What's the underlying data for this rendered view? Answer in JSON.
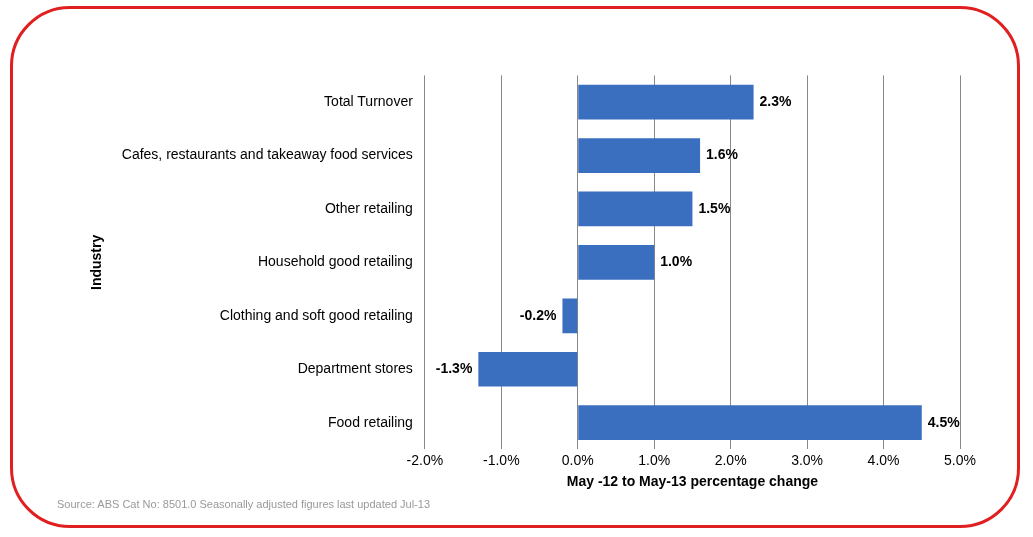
{
  "chart_data": {
    "type": "bar",
    "orientation": "horizontal",
    "xlabel": "May -12 to May-13 percentage change",
    "ylabel": "Industry",
    "categories": [
      "Total Turnover",
      "Cafes, restaurants and takeaway food services",
      "Other retailing",
      "Household good retailing",
      "Clothing and soft good retailing",
      "Department stores",
      "Food retailing"
    ],
    "values": [
      2.3,
      1.6,
      1.5,
      1.0,
      -0.2,
      -1.3,
      4.5
    ],
    "value_labels": [
      "2.3%",
      "1.6%",
      "1.5%",
      "1.0%",
      "-0.2%",
      "-1.3%",
      "4.5%"
    ],
    "color": "#3a6ebf",
    "xlim": [
      -2,
      5
    ],
    "xticks": [
      {
        "value": -2,
        "label": "-2.0%"
      },
      {
        "value": -1,
        "label": "-1.0%"
      },
      {
        "value": 0,
        "label": "0.0%"
      },
      {
        "value": 1,
        "label": "1.0%"
      },
      {
        "value": 2,
        "label": "2.0%"
      },
      {
        "value": 3,
        "label": "3.0%"
      },
      {
        "value": 4,
        "label": "4.0%"
      },
      {
        "value": 5,
        "label": "5.0%"
      }
    ],
    "grid": "x",
    "legend": false,
    "annotations": [
      "Source: ABS Cat No: 8501.0 Seasonally adjusted figures   last updated Jul-13"
    ]
  }
}
